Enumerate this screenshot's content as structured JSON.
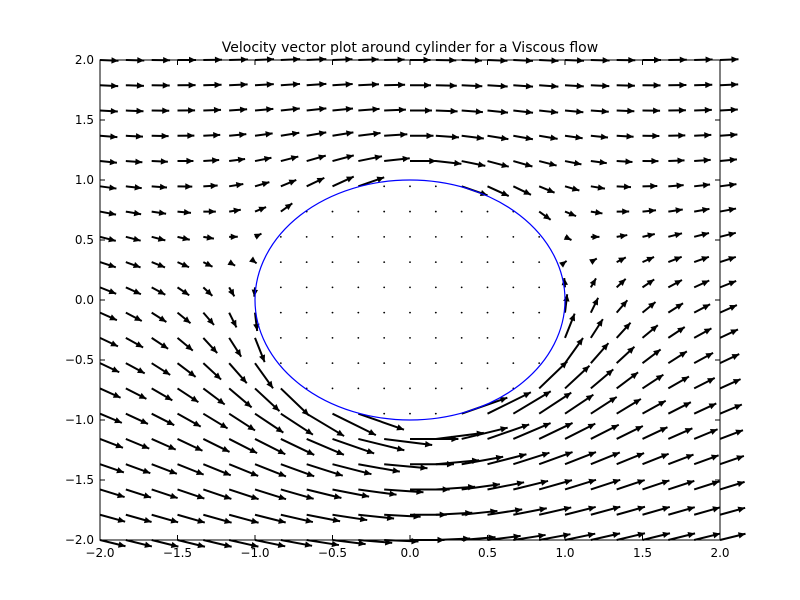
{
  "chart_data": {
    "type": "quiver",
    "title": "Velocity vector plot around cylinder for a Viscous flow",
    "xlabel": "",
    "ylabel": "",
    "xlim": [
      -2.0,
      2.0
    ],
    "ylim": [
      -2.0,
      2.0
    ],
    "x_ticks": [
      "−2.0",
      "−1.5",
      "−1.0",
      "−0.5",
      "0.0",
      "0.5",
      "1.0",
      "1.5",
      "2.0"
    ],
    "y_ticks": [
      "2.0",
      "1.5",
      "1.0",
      "0.5",
      "0.0",
      "−0.5",
      "−1.0",
      "−1.5",
      "−2.0"
    ],
    "grid": false,
    "legend": "none",
    "field": {
      "uniform_velocity": 1.0,
      "cylinder_radius": 1.0,
      "circulation": 4.0,
      "grid_x_count": 25,
      "grid_y_count": 20
    },
    "cylinder": {
      "center": [
        0,
        0
      ],
      "radius": 1.0,
      "color": "#0000ff"
    },
    "arrow_color": "#000000"
  }
}
